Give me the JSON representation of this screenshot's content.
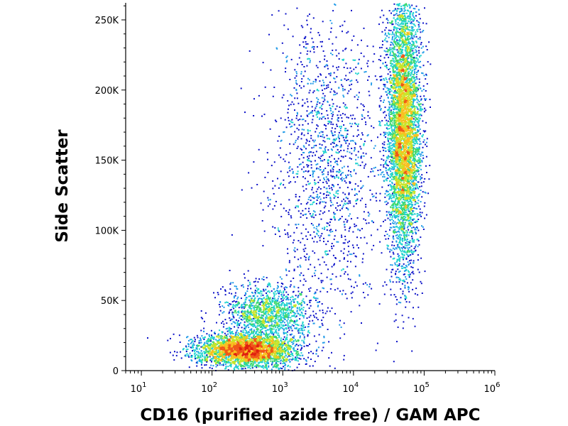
{
  "chart_data": {
    "type": "scatter",
    "subtype": "flow-cytometry-density-dot-plot",
    "xlabel": "CD16 (purified azide free) / GAM APC",
    "ylabel": "Side Scatter",
    "x_scale": "log",
    "xlim": [
      6,
      1000000
    ],
    "ylim": [
      0,
      262144
    ],
    "x_ticks": [
      {
        "value": 10,
        "base": "10",
        "exp": "1"
      },
      {
        "value": 100,
        "base": "10",
        "exp": "2"
      },
      {
        "value": 1000,
        "base": "10",
        "exp": "3"
      },
      {
        "value": 10000,
        "base": "10",
        "exp": "4"
      },
      {
        "value": 100000,
        "base": "10",
        "exp": "5"
      },
      {
        "value": 1000000,
        "base": "10",
        "exp": "6"
      }
    ],
    "y_ticks": [
      {
        "value": 0,
        "label": "0"
      },
      {
        "value": 50000,
        "label": "50K"
      },
      {
        "value": 100000,
        "label": "100K"
      },
      {
        "value": 150000,
        "label": "150K"
      },
      {
        "value": 200000,
        "label": "200K"
      },
      {
        "value": 250000,
        "label": "250K"
      }
    ],
    "color_scale": [
      "#0a10c8",
      "#1a4cf0",
      "#1e9ae8",
      "#22d4d0",
      "#3cd86e",
      "#c8e428",
      "#f8c020",
      "#f05818",
      "#e02010"
    ],
    "grid": false,
    "legend": "none",
    "populations": [
      {
        "x_center": 300,
        "x_log_sd": 0.35,
        "y_center": 15000,
        "y_sd": 6000,
        "events": 3200
      },
      {
        "x_center": 600,
        "x_log_sd": 0.3,
        "y_center": 42000,
        "y_sd": 10000,
        "events": 1300
      },
      {
        "x_center": 4000,
        "x_log_sd": 0.4,
        "y_center": 150000,
        "y_sd": 55000,
        "events": 1500
      },
      {
        "x_center": 50000,
        "x_log_sd": 0.12,
        "y_center": 175000,
        "y_sd": 50000,
        "events": 5200
      }
    ]
  }
}
